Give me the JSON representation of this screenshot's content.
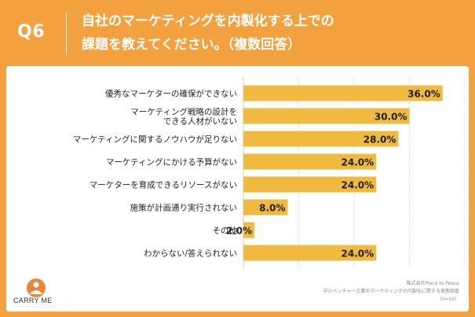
{
  "header": {
    "question_label": "Q6",
    "title_lines": [
      "自社のマーケティングを内製化する上での",
      "課題を教えてください。（複数回答）"
    ]
  },
  "chart_data": {
    "type": "bar",
    "orientation": "horizontal",
    "categories": [
      [
        "優秀なマーケターの確保ができない"
      ],
      [
        "マーケティング戦略の設計を",
        "できる人材がいない"
      ],
      [
        "マーケティングに関するノウハウが足りない"
      ],
      [
        "マーケティングにかける予算がない"
      ],
      [
        "マーケターを育成できるリソースがない"
      ],
      [
        "施策が計画通り実行されない"
      ],
      [
        "その他"
      ],
      [
        "わからない/答えられない"
      ]
    ],
    "values": [
      36.0,
      30.0,
      28.0,
      24.0,
      24.0,
      8.0,
      2.0,
      24.0
    ],
    "value_labels": [
      "36.0%",
      "30.0%",
      "28.0%",
      "24.0%",
      "24.0%",
      "8.0%",
      "2.0%",
      "24.0%"
    ],
    "xlim": [
      0,
      40
    ],
    "gridlines": [
      0,
      10,
      20,
      30,
      40
    ],
    "grid": true,
    "colors": {
      "bar": "#F0B93F",
      "grid": "#cccccc",
      "text": "#222222"
    }
  },
  "footer": {
    "logo_text": "CARRY ME",
    "source_lines": [
      "株式会社Piece to Peace",
      "中小ベンチャー企業のマーケティングの内製化に関する実態調査",
      "（n=50）"
    ]
  }
}
